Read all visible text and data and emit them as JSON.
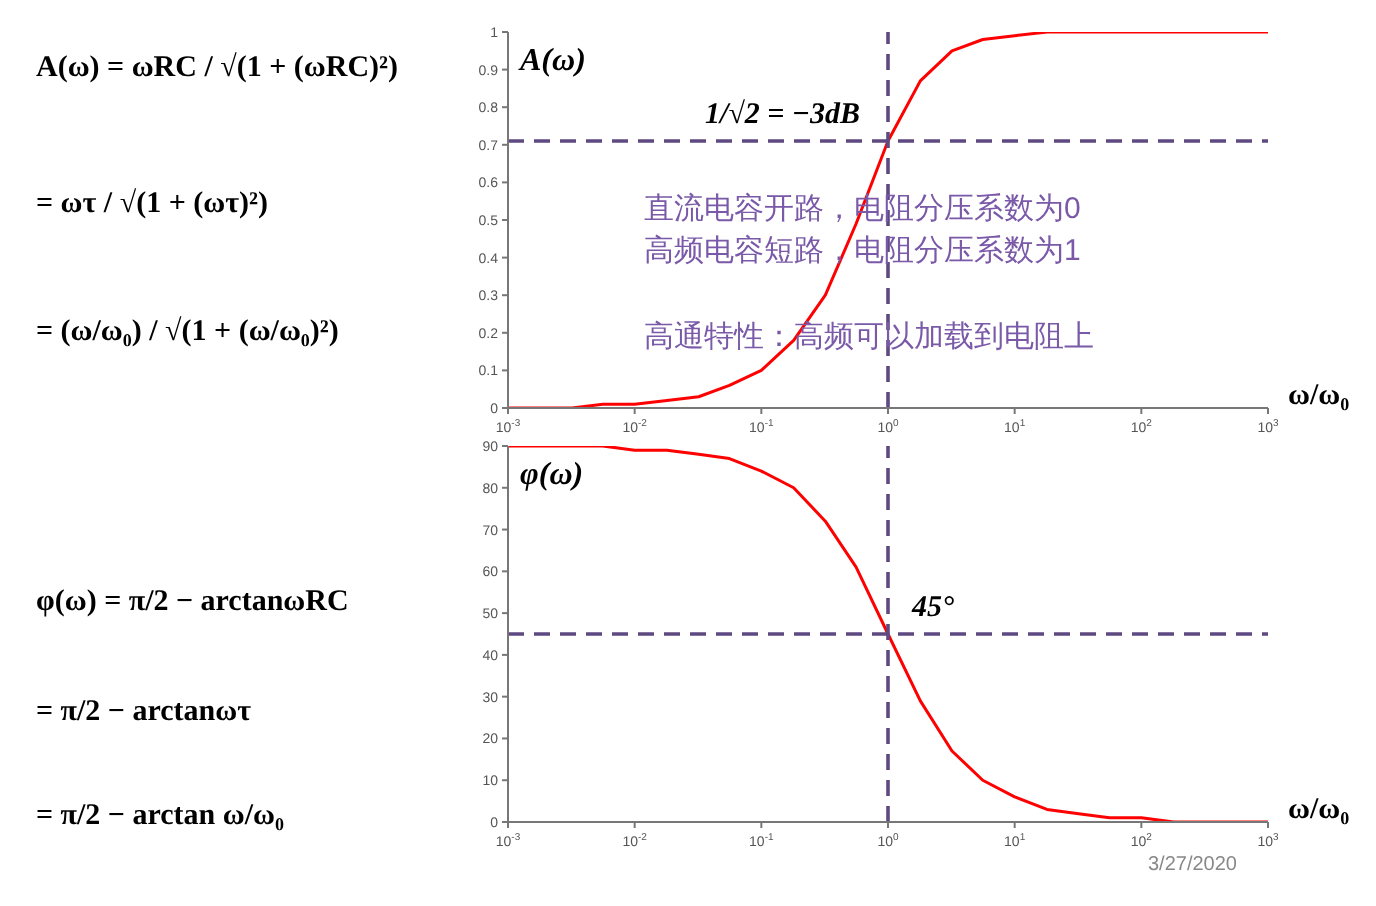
{
  "chart_data": [
    {
      "type": "other",
      "annotations": [
        "A(ω) = ωRC / √(1 + (ωRC)²)",
        "= ωτ / √(1 + (ωτ)²)",
        "= (ω/ω₀) / √(1 + (ω/ω₀)²)",
        "φ(ω) = π/2 − arctanωRC",
        "= π/2 − arctanωτ",
        "= π/2 − arctan ω/ω₀"
      ]
    },
    {
      "type": "line",
      "ylabel": "A(ω)",
      "xlabel": "ω/ω₀",
      "log": "x",
      "marker": "none",
      "x": [
        0.001,
        0.0018,
        0.0032,
        0.0056,
        0.01,
        0.018,
        0.032,
        0.056,
        0.1,
        0.18,
        0.32,
        0.56,
        1,
        1.8,
        3.2,
        5.6,
        10,
        18,
        32,
        56,
        100,
        180,
        320,
        560,
        1000
      ],
      "series": [
        {
          "color": "#ff0000",
          "values": [
            0,
            0,
            0,
            0.01,
            0.01,
            0.02,
            0.03,
            0.06,
            0.1,
            0.18,
            0.3,
            0.49,
            0.71,
            0.87,
            0.95,
            0.98,
            0.99,
            1,
            1,
            1,
            1,
            1,
            1,
            1,
            1
          ]
        }
      ],
      "xlim": [
        0.001,
        1000
      ],
      "xticks": [
        {
          "value": 0.001,
          "label": "10$^{-3}$"
        },
        {
          "value": 0.01,
          "label": "10$^{-2}$"
        },
        {
          "value": 0.1,
          "label": "10$^{-1}$"
        },
        {
          "value": 1,
          "label": "10$^{0}$"
        },
        {
          "value": 10,
          "label": "10$^{1}$"
        },
        {
          "value": 100,
          "label": "10$^{2}$"
        },
        {
          "value": 1000,
          "label": "10$^{3}$"
        }
      ],
      "ylim": [
        0,
        1
      ],
      "yticks": [
        0,
        0.1,
        0.2,
        0.3,
        0.4,
        0.5,
        0.6,
        0.7,
        0.8,
        0.9,
        1
      ],
      "ref_lines": [
        {
          "axis": "y",
          "value": 0.71,
          "label": "1/√2 = −3dB",
          "color": "#5e4a80",
          "line_style": "dashed"
        },
        {
          "axis": "x",
          "value": 1,
          "color": "#5e4a80",
          "line_style": "dashed"
        }
      ],
      "annotations": [
        "直流电容开路，电阻分压系数为0",
        "高频电容短路，电阻分压系数为1",
        "高通特性：高频可以加载到电阻上"
      ]
    },
    {
      "type": "line",
      "ylabel": "φ(ω)",
      "xlabel": "ω/ω₀",
      "log": "x",
      "marker": "none",
      "x": [
        0.001,
        0.0018,
        0.0032,
        0.0056,
        0.01,
        0.018,
        0.032,
        0.056,
        0.1,
        0.18,
        0.32,
        0.56,
        1,
        1.8,
        3.2,
        5.6,
        10,
        18,
        32,
        56,
        100,
        180,
        320,
        560,
        1000
      ],
      "series": [
        {
          "color": "#ff0000",
          "values": [
            90,
            90,
            90,
            90,
            89,
            89,
            88,
            87,
            84,
            80,
            72,
            61,
            45,
            29,
            17,
            10,
            6,
            3,
            2,
            1,
            1,
            0,
            0,
            0,
            0
          ]
        }
      ],
      "xlim": [
        0.001,
        1000
      ],
      "xticks": [
        {
          "value": 0.001,
          "label": "10$^{-3}$"
        },
        {
          "value": 0.01,
          "label": "10$^{-2}$"
        },
        {
          "value": 0.1,
          "label": "10$^{-1}$"
        },
        {
          "value": 1,
          "label": "10$^{0}$"
        },
        {
          "value": 10,
          "label": "10$^{1}$"
        },
        {
          "value": 100,
          "label": "10$^{2}$"
        },
        {
          "value": 1000,
          "label": "10$^{3}$"
        }
      ],
      "ylim": [
        0,
        90
      ],
      "yticks": [
        0,
        10,
        20,
        30,
        40,
        50,
        60,
        70,
        80,
        90
      ],
      "ref_lines": [
        {
          "axis": "y",
          "value": 45,
          "label": "45°",
          "color": "#5e4a80",
          "line_style": "dashed"
        },
        {
          "axis": "x",
          "value": 1,
          "color": "#5e4a80",
          "line_style": "dashed"
        }
      ],
      "annotations": [
        "3/27/2020"
      ]
    }
  ]
}
